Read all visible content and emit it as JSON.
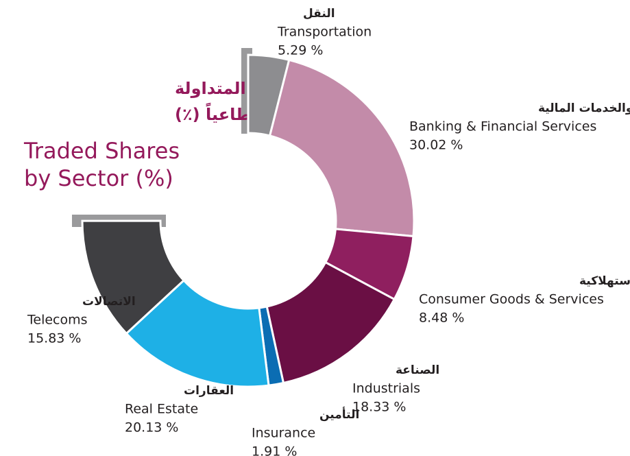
{
  "chart_data": {
    "type": "pie",
    "title_ar": [
      "عدد الأسهم المتداولة",
      "مصنفة قطاعياً (٪)"
    ],
    "title": [
      "Traded Shares",
      "by Sector (%)"
    ],
    "categories": [
      "Transportation",
      "Banking & Financial Services",
      "Consumer Goods & Services",
      "Industrials",
      "Insurance",
      "Real Estate",
      "Telecoms"
    ],
    "categories_ar": [
      "النقل",
      "البنوك والخدمات المالية",
      "الخدمات والسلع الاستهلاكية",
      "الصناعة",
      "التأمين",
      "العقارات",
      "الاتصالات"
    ],
    "values": [
      5.29,
      30.02,
      8.48,
      18.33,
      1.91,
      20.13,
      15.83
    ],
    "value_labels": [
      "5.29 %",
      "30.02 %",
      "8.48 %",
      "18.33 %",
      "1.91 %",
      "20.13 %",
      "15.83 %"
    ],
    "colors": [
      "#8d8d90",
      "#c38ba9",
      "#8f1f5f",
      "#6a0f44",
      "#0b6db3",
      "#1eb0e6",
      "#3f3f42"
    ]
  }
}
